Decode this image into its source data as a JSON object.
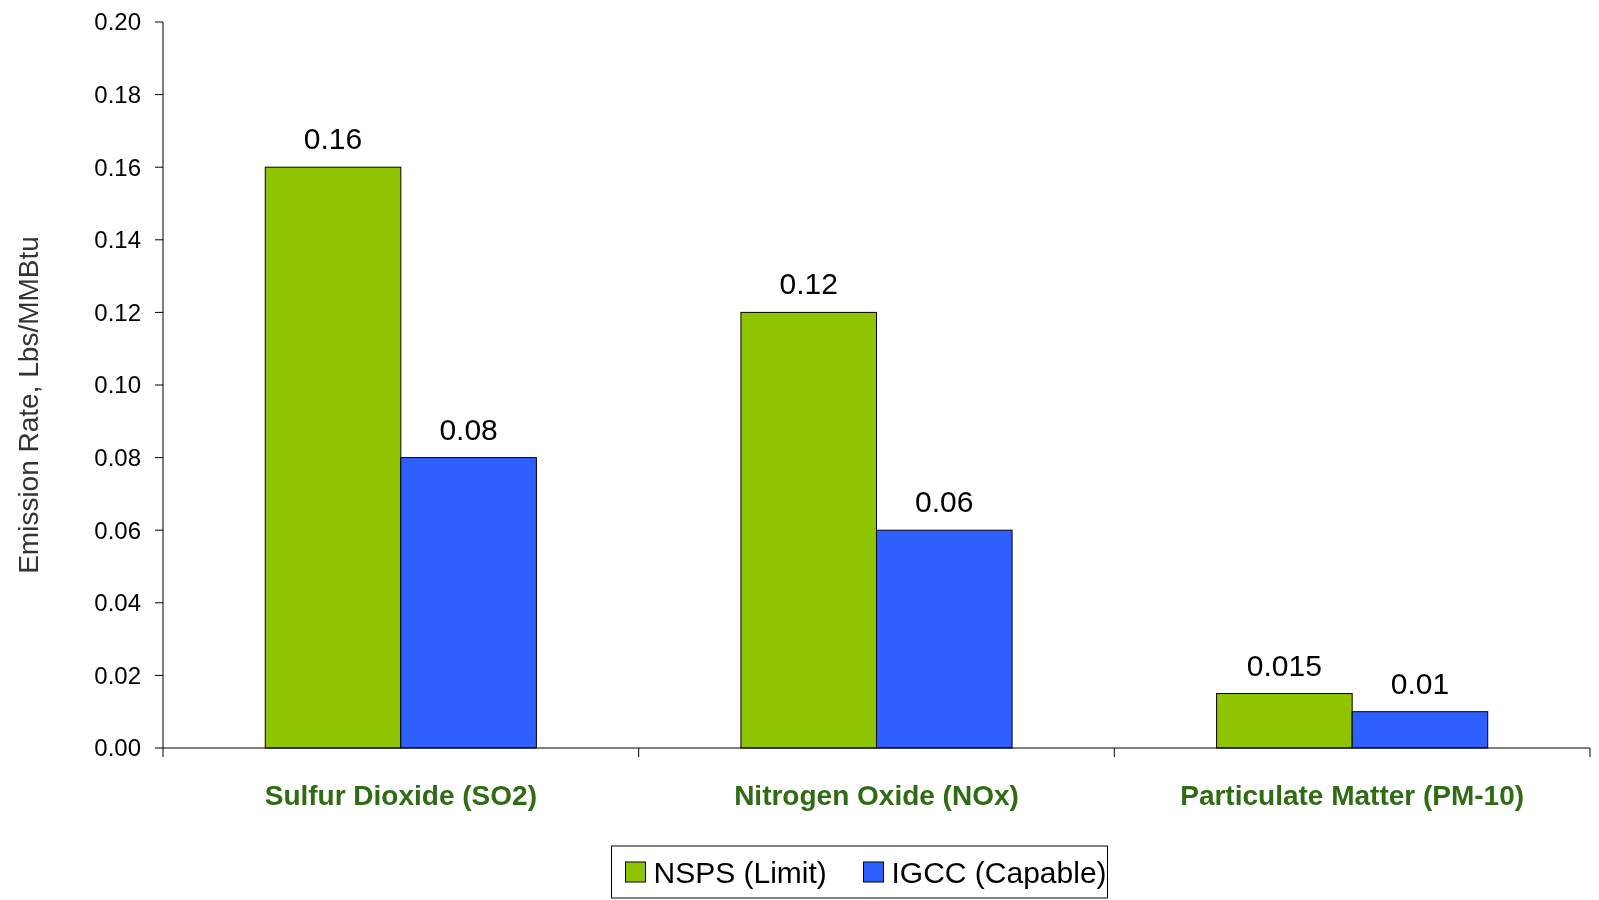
{
  "chart_data": {
    "type": "bar",
    "ylabel": "Emission Rate, Lbs/MMBtu",
    "categories": [
      "Sulfur Dioxide (SO2)",
      "Nitrogen Oxide (NOx)",
      "Particulate Matter (PM-10)"
    ],
    "series": [
      {
        "name": "NSPS (Limit)",
        "color": "#8fc400",
        "values": [
          0.16,
          0.12,
          0.015
        ]
      },
      {
        "name": "IGCC (Capable)",
        "color": "#2e60ff",
        "values": [
          0.08,
          0.06,
          0.01
        ]
      }
    ],
    "ylim": [
      0,
      0.2
    ],
    "yticks": [
      {
        "value": 0,
        "label": "0.00"
      },
      {
        "value": 0.02,
        "label": "0.02"
      },
      {
        "value": 0.04,
        "label": "0.04"
      },
      {
        "value": 0.06,
        "label": "0.06"
      },
      {
        "value": 0.08,
        "label": "0.08"
      },
      {
        "value": 0.1,
        "label": "0.10"
      },
      {
        "value": 0.12,
        "label": "0.12"
      },
      {
        "value": 0.14,
        "label": "0.14"
      },
      {
        "value": 0.16,
        "label": "0.16"
      },
      {
        "value": 0.18,
        "label": "0.18"
      },
      {
        "value": 0.2,
        "label": "0.20"
      }
    ],
    "data_labels": true,
    "grid": false,
    "legend": "bottom"
  }
}
